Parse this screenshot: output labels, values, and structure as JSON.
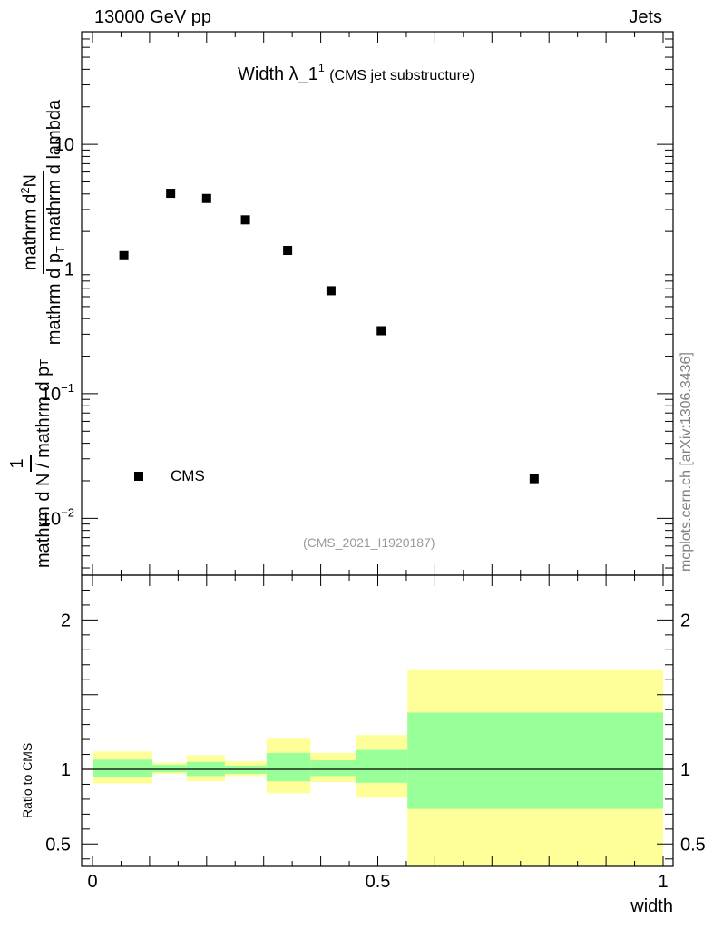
{
  "header": {
    "left": "13000 GeV pp",
    "right": "Jets"
  },
  "plot_title": {
    "main": "Width λ_1",
    "sup": "1",
    "sub": "(CMS jet substructure)"
  },
  "watermark": "(CMS_2021_I1920187)",
  "side_label": "mcplots.cern.ch [arXiv:1306.3436]",
  "legend": {
    "entry": "CMS"
  },
  "y_label_top": {
    "outer_numerator": "1",
    "inner_numerator": "mathrm d",
    "inner_numerator_sup": "2",
    "inner_numerator_tail": "N",
    "inner_denominator": "mathrm d p",
    "inner_denominator_sub": "T",
    "inner_denominator_tail": " mathrm d lambda",
    "outer_denominator": "mathrm d N / mathrm d p",
    "outer_denominator_sub": "T"
  },
  "y_label_bottom": "Ratio to CMS",
  "x_label": "width",
  "colors": {
    "inner_band": "#99ff99",
    "outer_band": "#ffff99",
    "marker": "#000000",
    "axis": "#000000"
  },
  "chart_data": [
    {
      "type": "scatter",
      "title": "Width λ_1^1 (CMS jet substructure)",
      "ylabel": "1/(mathrm d N / mathrm d p_T) mathrm d^2N/(mathrm d p_T mathrm d lambda)",
      "xlabel": "",
      "xlim": [
        0,
        1
      ],
      "ylim": [
        0.0035,
        80
      ],
      "yscale": "log",
      "y_ticks": [
        {
          "value": 0.01,
          "label": "10",
          "sup": "−2"
        },
        {
          "value": 0.1,
          "label": "10",
          "sup": "−1"
        },
        {
          "value": 1,
          "label": "1",
          "sup": ""
        },
        {
          "value": 10,
          "label": "10",
          "sup": ""
        }
      ],
      "legend": "bottom-left",
      "series": [
        {
          "name": "CMS",
          "marker": "square",
          "x": [
            0.055,
            0.137,
            0.2,
            0.268,
            0.342,
            0.418,
            0.506,
            0.774
          ],
          "y": [
            1.28,
            4.05,
            3.68,
            2.48,
            1.41,
            0.67,
            0.32,
            0.0208
          ]
        }
      ]
    },
    {
      "type": "area",
      "ylabel": "Ratio to CMS",
      "xlabel": "width",
      "xlim": [
        0,
        1
      ],
      "ylim": [
        0.35,
        2.3
      ],
      "y_ticks": [
        0.5,
        1,
        2
      ],
      "x_ticks": [
        0,
        0.5,
        1
      ],
      "reference_line": 1,
      "bins": [
        {
          "x0": 0.0,
          "x1": 0.105,
          "inner": [
            0.945,
            1.065
          ],
          "outer": [
            0.905,
            1.12
          ]
        },
        {
          "x0": 0.105,
          "x1": 0.165,
          "inner": [
            0.98,
            1.03
          ],
          "outer": [
            0.97,
            1.045
          ]
        },
        {
          "x0": 0.165,
          "x1": 0.232,
          "inner": [
            0.955,
            1.05
          ],
          "outer": [
            0.92,
            1.095
          ]
        },
        {
          "x0": 0.232,
          "x1": 0.305,
          "inner": [
            0.97,
            1.025
          ],
          "outer": [
            0.955,
            1.055
          ]
        },
        {
          "x0": 0.305,
          "x1": 0.382,
          "inner": [
            0.92,
            1.11
          ],
          "outer": [
            0.84,
            1.205
          ]
        },
        {
          "x0": 0.382,
          "x1": 0.462,
          "inner": [
            0.955,
            1.06
          ],
          "outer": [
            0.915,
            1.11
          ]
        },
        {
          "x0": 0.462,
          "x1": 0.552,
          "inner": [
            0.91,
            1.13
          ],
          "outer": [
            0.81,
            1.23
          ]
        },
        {
          "x0": 0.552,
          "x1": 1.0,
          "inner": [
            0.735,
            1.38
          ],
          "outer": [
            0.35,
            1.67
          ]
        }
      ]
    }
  ]
}
